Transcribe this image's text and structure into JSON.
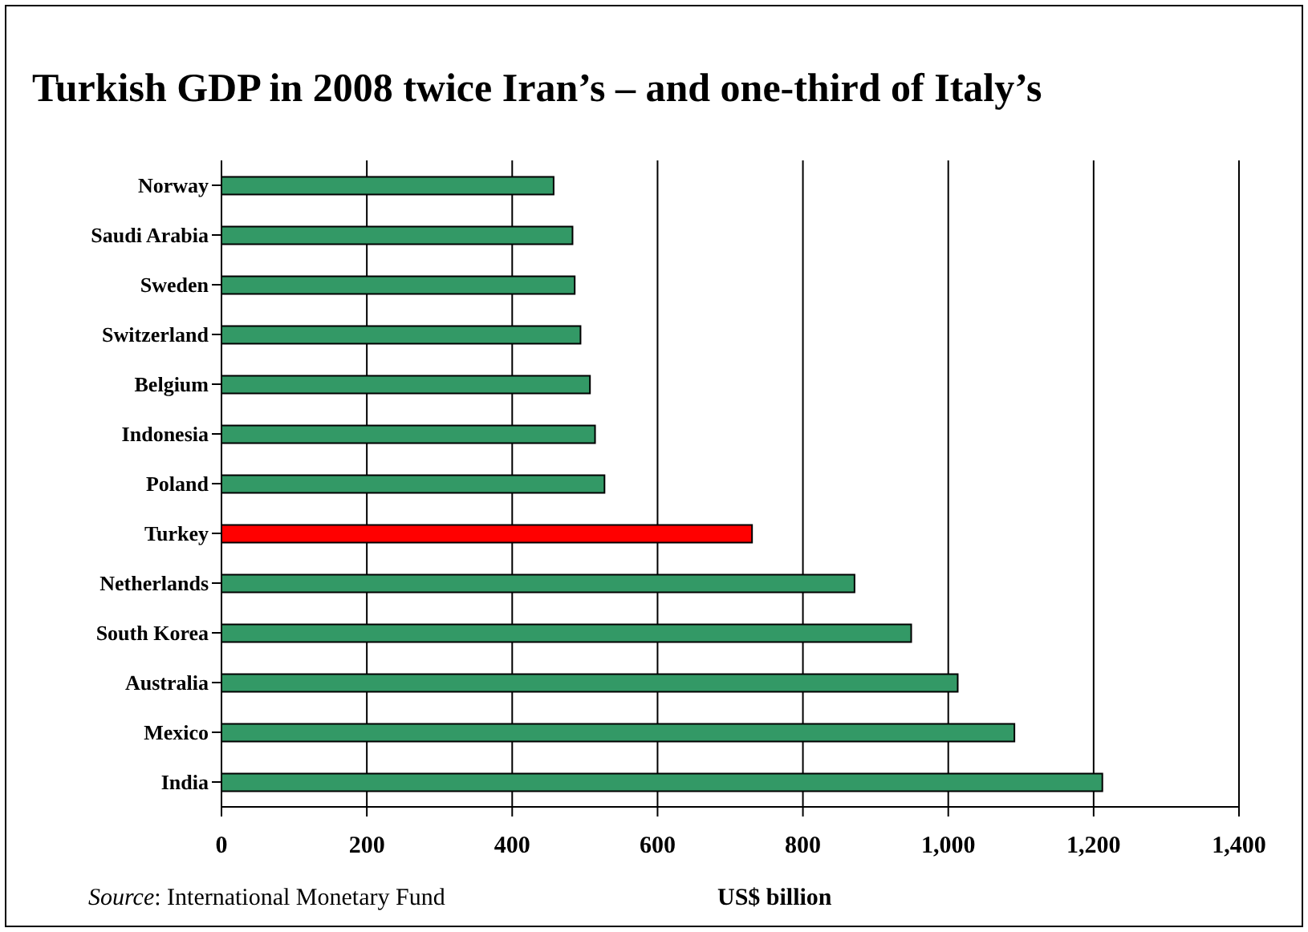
{
  "chart_data": {
    "type": "bar",
    "orientation": "horizontal",
    "title": "Turkish GDP in 2008 twice Iran’s – and one-third of Italy’s",
    "categories": [
      "Norway",
      "Saudi Arabia",
      "Sweden",
      "Switzerland",
      "Belgium",
      "Indonesia",
      "Poland",
      "Turkey",
      "Netherlands",
      "South Korea",
      "Australia",
      "Mexico",
      "India"
    ],
    "values": [
      457,
      483,
      486,
      494,
      507,
      514,
      527,
      730,
      871,
      949,
      1013,
      1091,
      1212
    ],
    "colors": [
      "#339966",
      "#339966",
      "#339966",
      "#339966",
      "#339966",
      "#339966",
      "#339966",
      "#ff0000",
      "#339966",
      "#339966",
      "#339966",
      "#339966",
      "#339966"
    ],
    "xlim": [
      0,
      1400
    ],
    "xticks": [
      0,
      200,
      400,
      600,
      800,
      {
        "value": 1000,
        "label": "1,000"
      },
      {
        "value": 1200,
        "label": "1,200"
      },
      {
        "value": 1400,
        "label": "1,400"
      }
    ],
    "xlabel": "US$ billion",
    "grid": "x",
    "annotations": [
      "Source: International Monetary Fund"
    ]
  }
}
